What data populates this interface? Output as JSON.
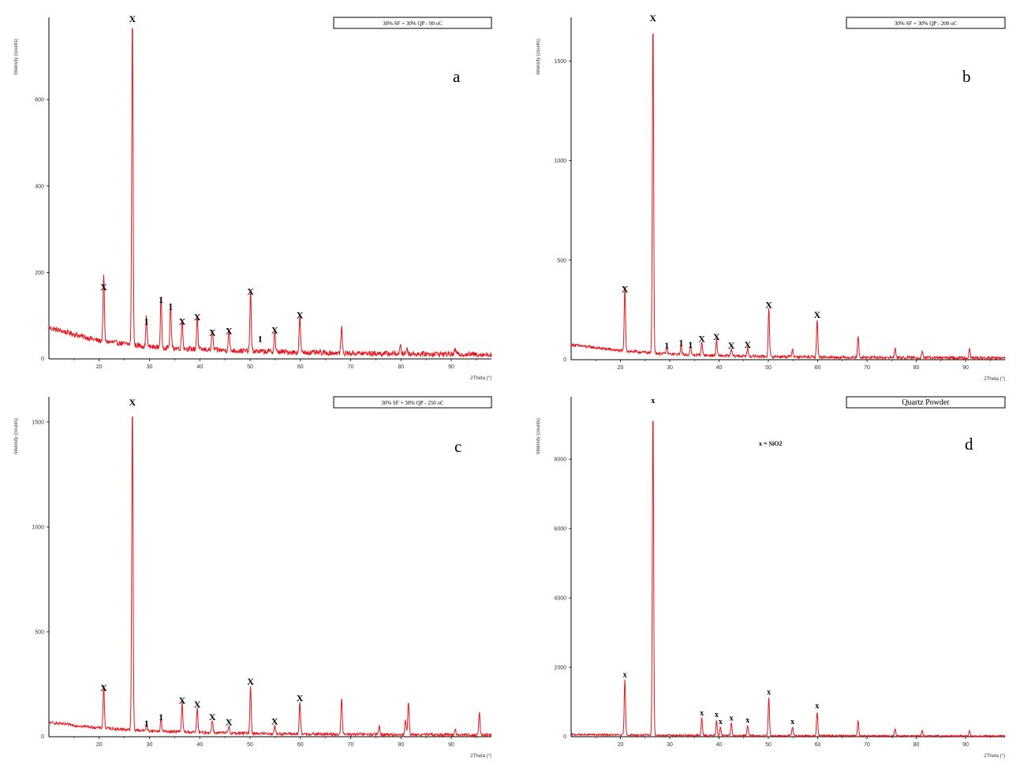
{
  "chart_data": [
    {
      "type": "line",
      "panel": "a",
      "legend": "30% SF + 30% QP - 90 oC",
      "xlabel": "2Theta (°)",
      "ylabel": "Intensity (counts)",
      "xlim": [
        10,
        98
      ],
      "ylim": [
        0,
        790
      ],
      "xticks": [
        20,
        30,
        40,
        50,
        60,
        70,
        80,
        90
      ],
      "yticks": [
        200,
        400,
        600
      ],
      "color": "#e8141c",
      "baseline": [
        [
          10,
          72
        ],
        [
          20,
          42
        ],
        [
          30,
          28
        ],
        [
          40,
          22
        ],
        [
          50,
          18
        ],
        [
          60,
          15
        ],
        [
          70,
          13
        ],
        [
          80,
          12
        ],
        [
          90,
          11
        ],
        [
          98,
          10
        ]
      ],
      "noise": 6,
      "peaks": [
        [
          20.9,
          150
        ],
        [
          26.6,
          770
        ],
        [
          29.4,
          70
        ],
        [
          32.3,
          120
        ],
        [
          34.2,
          105
        ],
        [
          36.5,
          70
        ],
        [
          39.5,
          80
        ],
        [
          42.5,
          45
        ],
        [
          45.8,
          48
        ],
        [
          50.1,
          140
        ],
        [
          54.9,
          50
        ],
        [
          59.9,
          85
        ],
        [
          68.2,
          60
        ],
        [
          79.9,
          18
        ],
        [
          81.2,
          15
        ],
        [
          90.8,
          12
        ]
      ],
      "labels": [
        {
          "x": 20.9,
          "y": 150,
          "text": "X"
        },
        {
          "x": 26.6,
          "y": 770,
          "text": "X"
        },
        {
          "x": 29.4,
          "y": 70,
          "text": "1"
        },
        {
          "x": 32.3,
          "y": 120,
          "text": "1"
        },
        {
          "x": 34.2,
          "y": 105,
          "text": "1"
        },
        {
          "x": 36.5,
          "y": 70,
          "text": "X"
        },
        {
          "x": 39.5,
          "y": 80,
          "text": "X"
        },
        {
          "x": 42.5,
          "y": 45,
          "text": "X"
        },
        {
          "x": 45.8,
          "y": 48,
          "text": "X"
        },
        {
          "x": 50.1,
          "y": 140,
          "text": "X"
        },
        {
          "x": 52.0,
          "y": 30,
          "text": "1"
        },
        {
          "x": 54.9,
          "y": 50,
          "text": "X"
        },
        {
          "x": 59.9,
          "y": 85,
          "text": "X"
        }
      ]
    },
    {
      "type": "line",
      "panel": "b",
      "legend": "30% SF + 30% QP - 200 oC",
      "xlabel": "2Theta (°)",
      "ylabel": "Intensity (counts)",
      "xlim": [
        10,
        98
      ],
      "ylim": [
        0,
        1720
      ],
      "xticks": [
        20,
        30,
        40,
        50,
        60,
        70,
        80,
        90
      ],
      "yticks": [
        500,
        1000,
        1500
      ],
      "color": "#e8141c",
      "baseline": [
        [
          10,
          75
        ],
        [
          20,
          45
        ],
        [
          30,
          28
        ],
        [
          40,
          20
        ],
        [
          50,
          16
        ],
        [
          60,
          13
        ],
        [
          70,
          11
        ],
        [
          80,
          10
        ],
        [
          90,
          9
        ],
        [
          98,
          8
        ]
      ],
      "noise": 7,
      "peaks": [
        [
          20.9,
          320
        ],
        [
          26.6,
          1680
        ],
        [
          29.4,
          35
        ],
        [
          32.3,
          50
        ],
        [
          34.2,
          40
        ],
        [
          36.5,
          70
        ],
        [
          39.5,
          80
        ],
        [
          42.5,
          35
        ],
        [
          45.8,
          40
        ],
        [
          50.1,
          240
        ],
        [
          54.9,
          40
        ],
        [
          59.9,
          190
        ],
        [
          68.2,
          110
        ],
        [
          75.7,
          50
        ],
        [
          81.2,
          35
        ],
        [
          90.8,
          50
        ]
      ],
      "labels": [
        {
          "x": 20.9,
          "y": 320,
          "text": "X"
        },
        {
          "x": 26.6,
          "y": 1680,
          "text": "X"
        },
        {
          "x": 29.4,
          "y": 35,
          "text": "1"
        },
        {
          "x": 32.3,
          "y": 50,
          "text": "1"
        },
        {
          "x": 34.2,
          "y": 40,
          "text": "1"
        },
        {
          "x": 36.5,
          "y": 70,
          "text": "X"
        },
        {
          "x": 39.5,
          "y": 80,
          "text": "X"
        },
        {
          "x": 42.5,
          "y": 35,
          "text": "X"
        },
        {
          "x": 45.8,
          "y": 40,
          "text": "X"
        },
        {
          "x": 50.1,
          "y": 240,
          "text": "X"
        },
        {
          "x": 59.9,
          "y": 190,
          "text": "X"
        }
      ]
    },
    {
      "type": "line",
      "panel": "c",
      "legend": "30% SF + 30% QP - 250 oC",
      "xlabel": "2Theta (°)",
      "ylabel": "Intensity (counts)",
      "xlim": [
        10,
        98
      ],
      "ylim": [
        0,
        1620
      ],
      "xticks": [
        20,
        30,
        40,
        50,
        60,
        70,
        80,
        90
      ],
      "yticks": [
        500,
        1000,
        1500
      ],
      "color": "#e8141c",
      "baseline": [
        [
          10,
          68
        ],
        [
          20,
          42
        ],
        [
          30,
          28
        ],
        [
          40,
          20
        ],
        [
          50,
          16
        ],
        [
          60,
          13
        ],
        [
          70,
          11
        ],
        [
          80,
          10
        ],
        [
          90,
          9
        ],
        [
          98,
          8
        ]
      ],
      "noise": 7,
      "peaks": [
        [
          20.9,
          200
        ],
        [
          26.6,
          1560
        ],
        [
          29.4,
          30
        ],
        [
          32.3,
          60
        ],
        [
          36.5,
          140
        ],
        [
          39.5,
          120
        ],
        [
          42.5,
          60
        ],
        [
          45.8,
          35
        ],
        [
          50.1,
          230
        ],
        [
          54.9,
          40
        ],
        [
          59.9,
          150
        ],
        [
          68.2,
          170
        ],
        [
          75.7,
          40
        ],
        [
          80.9,
          70
        ],
        [
          81.5,
          160
        ],
        [
          90.8,
          30
        ],
        [
          95.6,
          110
        ]
      ],
      "labels": [
        {
          "x": 20.9,
          "y": 200,
          "text": "X"
        },
        {
          "x": 26.6,
          "y": 1560,
          "text": "X"
        },
        {
          "x": 29.4,
          "y": 30,
          "text": "1"
        },
        {
          "x": 32.3,
          "y": 60,
          "text": "1"
        },
        {
          "x": 36.5,
          "y": 140,
          "text": "X"
        },
        {
          "x": 39.5,
          "y": 120,
          "text": "X"
        },
        {
          "x": 42.5,
          "y": 60,
          "text": "X"
        },
        {
          "x": 45.8,
          "y": 35,
          "text": "X"
        },
        {
          "x": 50.1,
          "y": 230,
          "text": "X"
        },
        {
          "x": 54.9,
          "y": 40,
          "text": "X"
        },
        {
          "x": 59.9,
          "y": 150,
          "text": "X"
        }
      ]
    },
    {
      "type": "line",
      "panel": "d",
      "legend": "Quartz Powder",
      "annotation": "x = SiO2",
      "xlabel": "2Theta (°)",
      "ylabel": "Intensity (counts)",
      "xlim": [
        10,
        98
      ],
      "ylim": [
        0,
        9800
      ],
      "xticks": [
        20,
        30,
        40,
        50,
        60,
        70,
        80,
        90
      ],
      "yticks": [
        2000,
        4000,
        6000,
        8000
      ],
      "color": "#e8141c",
      "baseline": [
        [
          10,
          60
        ],
        [
          20,
          50
        ],
        [
          30,
          40
        ],
        [
          40,
          35
        ],
        [
          50,
          30
        ],
        [
          60,
          28
        ],
        [
          70,
          25
        ],
        [
          80,
          22
        ],
        [
          90,
          20
        ],
        [
          98,
          18
        ]
      ],
      "noise": 25,
      "peaks": [
        [
          20.9,
          1600
        ],
        [
          26.6,
          9500
        ],
        [
          36.5,
          500
        ],
        [
          39.5,
          450
        ],
        [
          40.3,
          250
        ],
        [
          42.5,
          350
        ],
        [
          45.8,
          300
        ],
        [
          50.1,
          1100
        ],
        [
          54.9,
          250
        ],
        [
          59.9,
          700
        ],
        [
          68.2,
          450
        ],
        [
          75.7,
          200
        ],
        [
          81.2,
          150
        ],
        [
          90.8,
          150
        ]
      ],
      "labels": [
        {
          "x": 20.9,
          "y": 1600,
          "text": "x"
        },
        {
          "x": 26.6,
          "y": 9500,
          "text": "x"
        },
        {
          "x": 36.5,
          "y": 500,
          "text": "x"
        },
        {
          "x": 39.5,
          "y": 450,
          "text": "x"
        },
        {
          "x": 40.3,
          "y": 250,
          "text": "x"
        },
        {
          "x": 42.5,
          "y": 350,
          "text": "x"
        },
        {
          "x": 45.8,
          "y": 300,
          "text": "x"
        },
        {
          "x": 50.1,
          "y": 1100,
          "text": "x"
        },
        {
          "x": 54.9,
          "y": 250,
          "text": "x"
        },
        {
          "x": 59.9,
          "y": 700,
          "text": "x"
        }
      ]
    }
  ]
}
